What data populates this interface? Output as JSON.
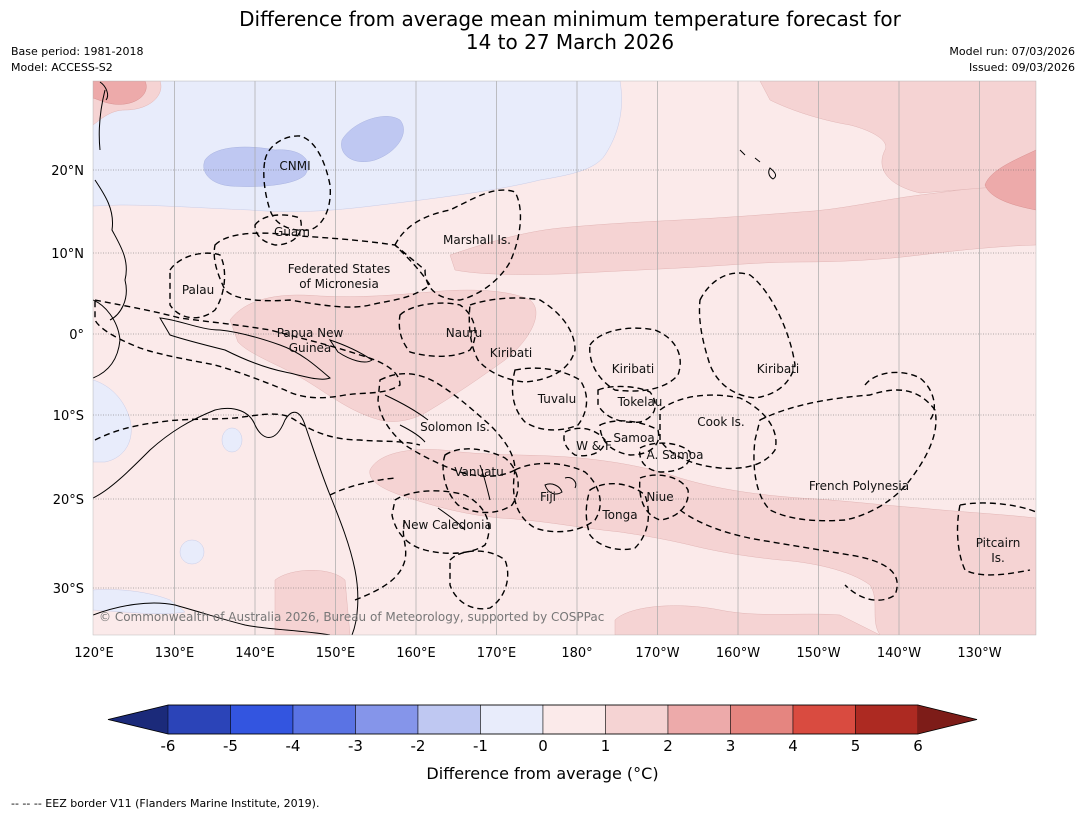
{
  "title_line1": "Difference from average mean minimum temperature forecast for",
  "title_line2": "14 to 27 March 2026",
  "base_period": "Base period: 1981-2018",
  "model": "Model: ACCESS-S2",
  "model_run": "Model run: 07/03/2026",
  "issued": "Issued: 09/03/2026",
  "copyright": "© Commonwealth of Australia 2026, Bureau of Meteorology, supported by COSPPac",
  "lon_ticks": [
    "120°E",
    "130°E",
    "140°E",
    "150°E",
    "160°E",
    "170°E",
    "180°",
    "170°W",
    "160°W",
    "150°W",
    "140°W",
    "130°W"
  ],
  "lat_ticks": [
    "20°N",
    "10°N",
    "0°",
    "10°S",
    "20°S",
    "30°S"
  ],
  "places": {
    "cnmi": "CNMI",
    "guam": "Guam",
    "marshall": "Marshall Is.",
    "fsm1": "Federated States",
    "fsm2": "of Micronesia",
    "palau": "Palau",
    "png1": "Papua New",
    "png2": "Guinea",
    "nauru": "Nauru",
    "kiribati_w": "Kiribati",
    "kiribati_c": "Kiribati",
    "kiribati_e": "Kiribati",
    "tuvalu": "Tuvalu",
    "tokelau": "Tokelau",
    "cook": "Cook Is.",
    "solomon": "Solomon Is.",
    "samoa": "Samoa",
    "wf": "W & F",
    "asamoa": "A. Samoa",
    "vanuatu": "Vanuatu",
    "fiji": "Fiji",
    "niue": "Niue",
    "tonga": "Tonga",
    "frpoly": "French Polynesia",
    "newcal": "New Caledonia",
    "pitcairn1": "Pitcairn",
    "pitcairn2": "Is."
  },
  "colorbar": {
    "ticks": [
      "-6",
      "-5",
      "-4",
      "-3",
      "-2",
      "-1",
      "0",
      "1",
      "2",
      "3",
      "4",
      "5",
      "6"
    ],
    "colors": [
      "#1b2a7a",
      "#2b44b8",
      "#3355e0",
      "#5a73e4",
      "#8595ea",
      "#bfc8f2",
      "#e8ecfb",
      "#fbeaea",
      "#f5d3d3",
      "#edaaaa",
      "#e58580",
      "#d94b40",
      "#ad2a22",
      "#7d1c18"
    ],
    "label": "Difference from average (°C)"
  },
  "footnote": "--  --  -- EEZ border V11 (Flanders Marine Institute, 2019)."
}
